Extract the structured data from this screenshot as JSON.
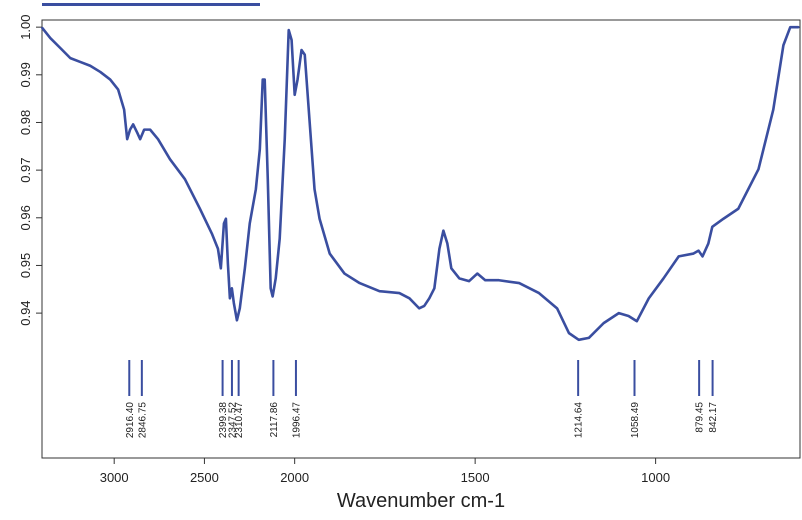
{
  "chart_data": {
    "type": "line",
    "xlabel": "Wavenumber cm-1",
    "xscale": "split",
    "xbreak": 2000,
    "xlim": [
      3400,
      600
    ],
    "xticks": [
      3000,
      2500,
      2000,
      1500,
      1000
    ],
    "ylim": [
      0.9096,
      1.0015
    ],
    "yticks": [
      {
        "value": 1.0,
        "label": "1.00"
      },
      0.99,
      0.98,
      0.97,
      0.96,
      0.95,
      0.94
    ],
    "color": "#3a4ea0",
    "x": [
      3398,
      3354,
      3298,
      3243,
      3188,
      3133,
      3077,
      3022,
      2978,
      2945,
      2928,
      2912,
      2895,
      2873,
      2856,
      2834,
      2801,
      2757,
      2691,
      2608,
      2525,
      2459,
      2425,
      2409,
      2392,
      2381,
      2370,
      2359,
      2348,
      2337,
      2320,
      2304,
      2276,
      2249,
      2215,
      2193,
      2177,
      2166,
      2149,
      2133,
      2122,
      2105,
      2083,
      2055,
      2033,
      2017,
      2000,
      1992,
      1981,
      1972,
      1959,
      1945,
      1931,
      1903,
      1862,
      1820,
      1765,
      1710,
      1682,
      1655,
      1641,
      1627,
      1613,
      1599,
      1588,
      1577,
      1566,
      1544,
      1517,
      1494,
      1472,
      1434,
      1378,
      1323,
      1273,
      1240,
      1213,
      1185,
      1144,
      1102,
      1075,
      1052,
      1019,
      978,
      936,
      895,
      881,
      870,
      854,
      843,
      812,
      771,
      715,
      674,
      646,
      627,
      605
    ],
    "values": [
      0.9998,
      0.9977,
      0.9956,
      0.9935,
      0.9927,
      0.9919,
      0.9906,
      0.989,
      0.9869,
      0.9827,
      0.9765,
      0.9785,
      0.9796,
      0.9779,
      0.9765,
      0.9785,
      0.9785,
      0.9765,
      0.9723,
      0.9681,
      0.9619,
      0.9567,
      0.9535,
      0.9494,
      0.9588,
      0.9598,
      0.9504,
      0.9431,
      0.9452,
      0.9421,
      0.9385,
      0.941,
      0.9494,
      0.9588,
      0.966,
      0.9744,
      0.989,
      0.989,
      0.9681,
      0.9452,
      0.9435,
      0.9473,
      0.9556,
      0.9765,
      0.9994,
      0.9973,
      0.9858,
      0.989,
      0.9952,
      0.9942,
      0.9806,
      0.966,
      0.9598,
      0.9525,
      0.9483,
      0.9463,
      0.9446,
      0.9442,
      0.9431,
      0.941,
      0.9415,
      0.9431,
      0.9452,
      0.9535,
      0.9573,
      0.9546,
      0.9494,
      0.9473,
      0.9467,
      0.9483,
      0.9469,
      0.9469,
      0.9463,
      0.9442,
      0.941,
      0.9358,
      0.9344,
      0.9348,
      0.9379,
      0.94,
      0.9394,
      0.9383,
      0.9431,
      0.9473,
      0.9519,
      0.9525,
      0.9531,
      0.9519,
      0.9546,
      0.9581,
      0.9598,
      0.9619,
      0.9702,
      0.9827,
      0.9962,
      1.0,
      1.0
    ],
    "peaks": [
      {
        "value": 2916.4,
        "label": "2916.40"
      },
      {
        "value": 2846.75,
        "label": "2846.75"
      },
      {
        "value": 2399.38,
        "label": "2399.38"
      },
      {
        "value": 2347.52,
        "label": "2347.52"
      },
      {
        "value": 2310.47,
        "label": "2310.47"
      },
      {
        "value": 2117.86,
        "label": "2117.86"
      },
      {
        "value": 1996.47,
        "label": "1996.47"
      },
      {
        "value": 1214.64,
        "label": "1214.64"
      },
      {
        "value": 1058.49,
        "label": "1058.49"
      },
      {
        "value": 879.45,
        "label": "879.45"
      },
      {
        "value": 842.17,
        "label": "842.17"
      }
    ]
  }
}
